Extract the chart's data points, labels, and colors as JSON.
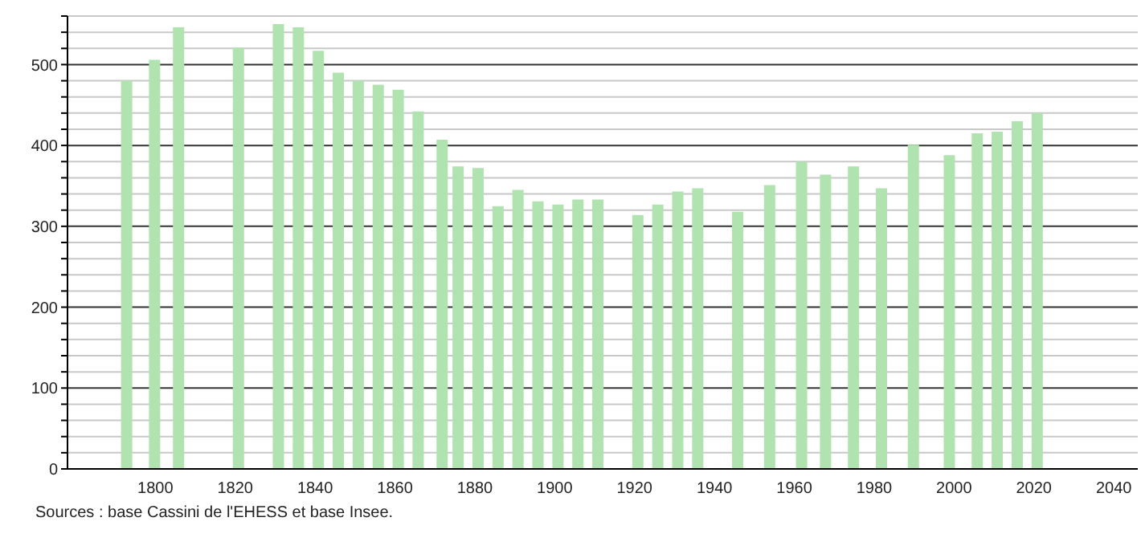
{
  "chart_data": {
    "type": "bar",
    "x": [
      1793,
      1800,
      1806,
      1821,
      1831,
      1836,
      1841,
      1846,
      1851,
      1856,
      1861,
      1866,
      1872,
      1876,
      1881,
      1886,
      1891,
      1896,
      1901,
      1906,
      1911,
      1921,
      1926,
      1931,
      1936,
      1946,
      1954,
      1962,
      1968,
      1975,
      1982,
      1990,
      1999,
      2006,
      2011,
      2016,
      2021
    ],
    "values": [
      480,
      506,
      546,
      521,
      550,
      546,
      517,
      490,
      480,
      475,
      469,
      442,
      407,
      374,
      372,
      325,
      345,
      331,
      327,
      333,
      333,
      314,
      327,
      343,
      347,
      318,
      351,
      380,
      364,
      374,
      347,
      401,
      388,
      415,
      417,
      430,
      440
    ],
    "color": "#b1e3b1",
    "xlim": [
      1778,
      2046
    ],
    "xticks": [
      1800,
      1820,
      1840,
      1860,
      1880,
      1900,
      1920,
      1940,
      1960,
      1980,
      2000,
      2020,
      2040
    ],
    "ylim": [
      0,
      560
    ],
    "yticks": [
      0,
      {
        "value": 20,
        "label": null
      },
      {
        "value": 40,
        "label": null
      },
      {
        "value": 60,
        "label": null
      },
      {
        "value": 80,
        "label": null
      },
      100,
      {
        "value": 120,
        "label": null
      },
      {
        "value": 140,
        "label": null
      },
      {
        "value": 160,
        "label": null
      },
      {
        "value": 180,
        "label": null
      },
      200,
      {
        "value": 220,
        "label": null
      },
      {
        "value": 240,
        "label": null
      },
      {
        "value": 260,
        "label": null
      },
      {
        "value": 280,
        "label": null
      },
      300,
      {
        "value": 320,
        "label": null
      },
      {
        "value": 340,
        "label": null
      },
      {
        "value": 360,
        "label": null
      },
      {
        "value": 380,
        "label": null
      },
      400,
      {
        "value": 420,
        "label": null
      },
      {
        "value": 440,
        "label": null
      },
      {
        "value": 460,
        "label": null
      },
      {
        "value": 480,
        "label": null
      },
      500,
      {
        "value": 520,
        "label": null
      },
      {
        "value": 540,
        "label": null
      },
      {
        "value": 560,
        "label": null
      }
    ],
    "grid": true,
    "annotations": [
      "Sources : base Cassini de l'EHESS et base Insee."
    ]
  }
}
